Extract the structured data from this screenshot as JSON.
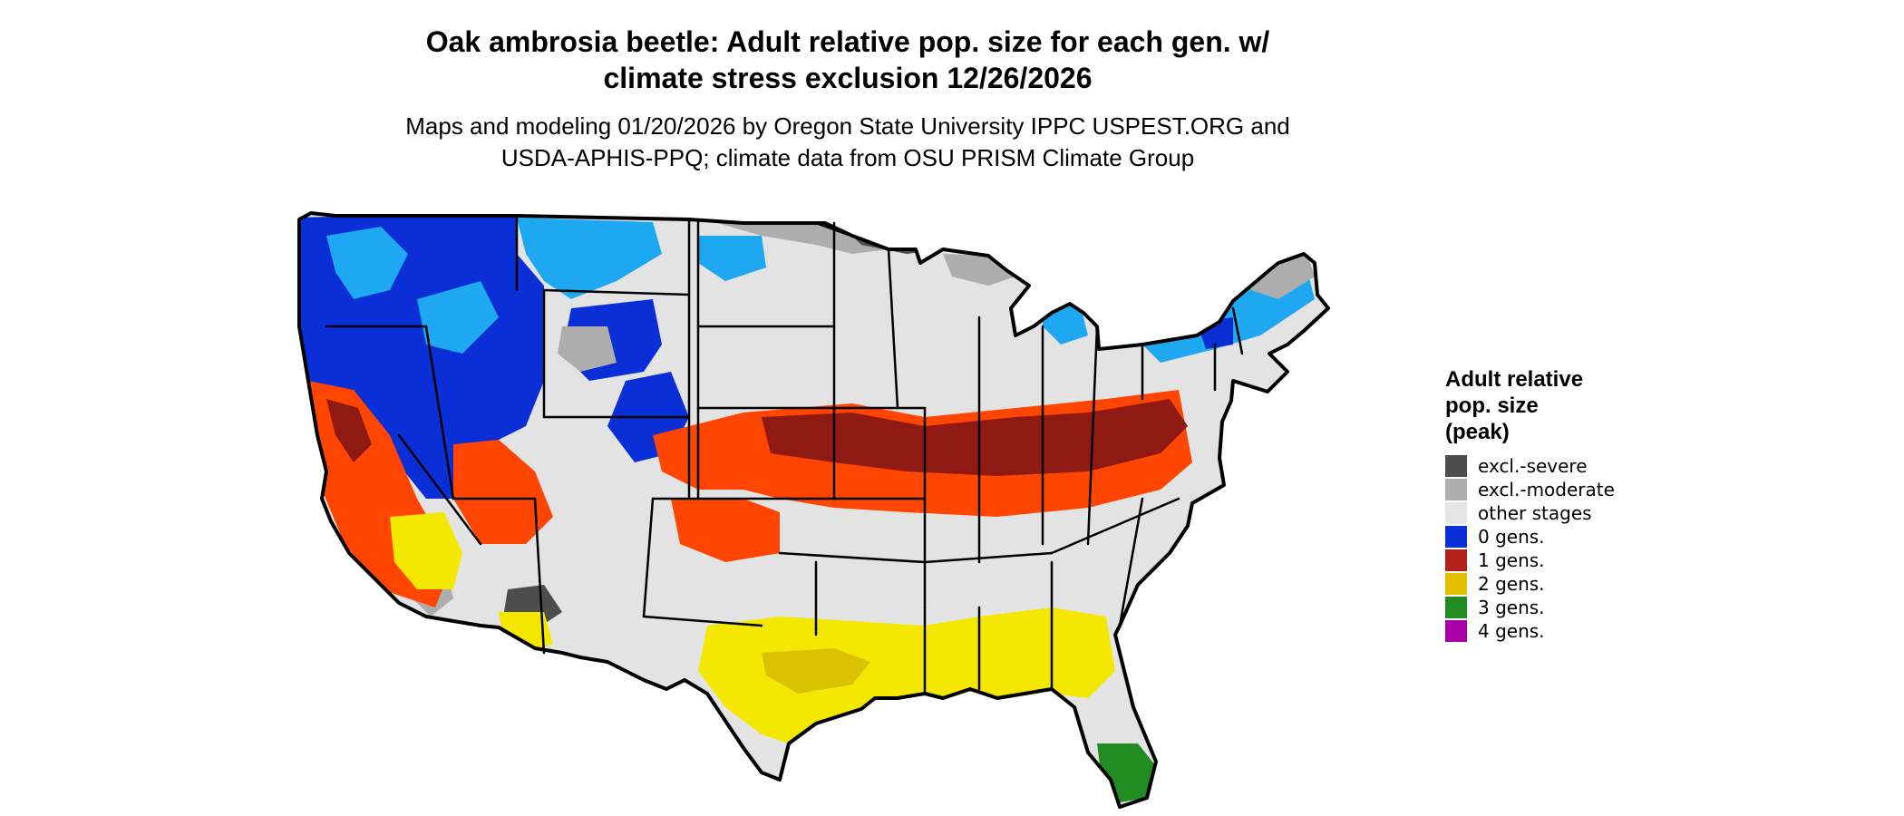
{
  "title": {
    "line1": "Oak ambrosia beetle: Adult relative pop. size for each gen. w/",
    "line2": "climate stress exclusion 12/26/2026"
  },
  "subtitle": {
    "line1": "Maps and modeling 01/20/2026 by Oregon State University IPPC USPEST.ORG and",
    "line2": "USDA-APHIS-PPQ; climate data from OSU PRISM Climate Group"
  },
  "legend": {
    "title_lines": [
      "Adult relative",
      "pop. size",
      "(peak)"
    ],
    "items": [
      {
        "label": "excl.-severe",
        "color": "#4d4d4d"
      },
      {
        "label": "excl.-moderate",
        "color": "#adadad"
      },
      {
        "label": "other stages",
        "color": "#e6e6e6"
      },
      {
        "label": "0 gens.",
        "color": "#0a2fd6"
      },
      {
        "label": "1 gens.",
        "color": "#b22218"
      },
      {
        "label": "2 gens.",
        "color": "#e3bf00"
      },
      {
        "label": "3 gens.",
        "color": "#228b22"
      },
      {
        "label": "4 gens.",
        "color": "#a600a6"
      }
    ]
  },
  "map_colors": {
    "background": "#e3e3e3",
    "border": "#000000",
    "excl_severe": "#4d4d4d",
    "excl_moderate": "#adadad",
    "zero_gen_dark": "#0a2fd6",
    "zero_gen_light": "#1fa8f2",
    "one_gen_dark": "#8f1a14",
    "one_gen_light": "#ff4500",
    "two_gen": "#f5e800",
    "two_gen_dark": "#d9c200",
    "three_gen": "#228b22",
    "three_gen_light": "#7ddc7d"
  }
}
